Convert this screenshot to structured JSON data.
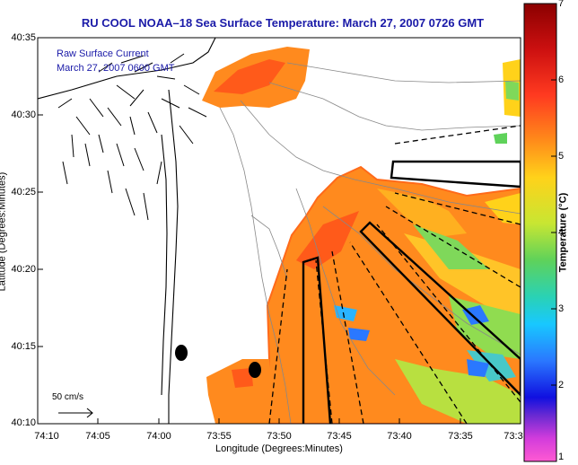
{
  "title": "RU COOL  NOAA–18  Sea Surface Temperature:  March 27, 2007 0726 GMT",
  "overlay": {
    "line1": "Raw Surface Current",
    "line2": "March 27, 2007 0600 GMT"
  },
  "axes": {
    "xlabel": "Longitude (Degrees:Minutes)",
    "ylabel": "Latitude (Degrees:Minutes)",
    "xticks": [
      "74:10",
      "74:05",
      "74:00",
      "73:55",
      "73:50",
      "73:45",
      "73:40",
      "73:35",
      "73:3"
    ],
    "yticks": [
      "40:35",
      "40:30",
      "40:25",
      "40:20",
      "40:15",
      "40:10"
    ]
  },
  "colorbar": {
    "label": "Temperature (°C)",
    "ticks": [
      "7",
      "6",
      "5",
      "4",
      "3",
      "2",
      "1"
    ],
    "range": [
      1,
      7
    ]
  },
  "scale_label": "50 cm/s",
  "colors": {
    "title": "#1a1aa8",
    "land": "#ffffff",
    "contour": "#888888"
  }
}
